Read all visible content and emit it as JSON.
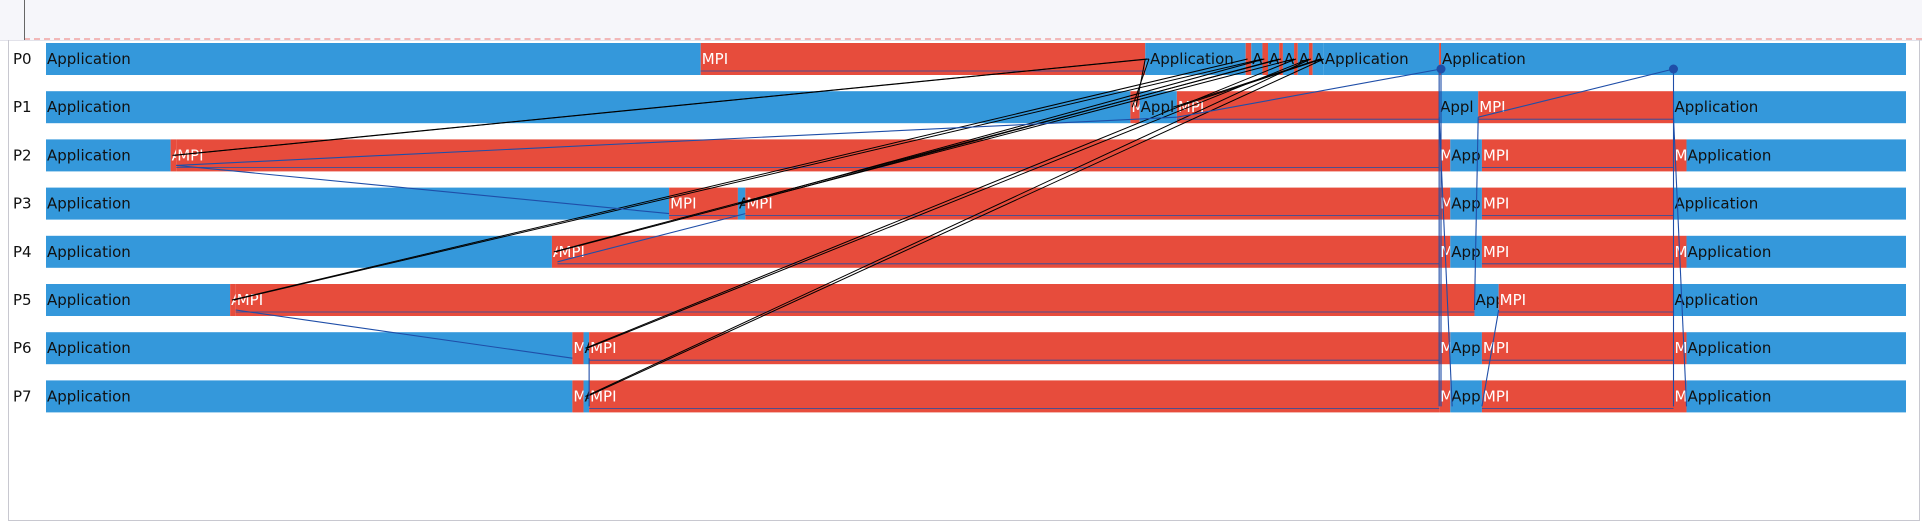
{
  "window": {
    "title": ""
  },
  "colors": {
    "application": "#3498db",
    "mpi": "#e74c3c",
    "message_line": "#000000",
    "collective_line": "#1f4ea8"
  },
  "labels": {
    "app": "Application",
    "mpi": "MPI"
  },
  "time_range": [
    0,
    1000
  ],
  "processes": [
    {
      "name": "P0",
      "states": [
        {
          "s": 0,
          "e": 352,
          "t": "app",
          "label": "Application"
        },
        {
          "s": 352,
          "e": 591,
          "t": "mpi",
          "label": "MPI"
        },
        {
          "s": 591,
          "e": 593,
          "t": "app",
          "label": ""
        },
        {
          "s": 593,
          "e": 645,
          "t": "app",
          "label": "Application"
        },
        {
          "s": 645,
          "e": 648,
          "t": "mpi",
          "label": ""
        },
        {
          "s": 648,
          "e": 654,
          "t": "app",
          "label": "A"
        },
        {
          "s": 654,
          "e": 657,
          "t": "mpi",
          "label": ""
        },
        {
          "s": 657,
          "e": 663,
          "t": "app",
          "label": "A"
        },
        {
          "s": 663,
          "e": 665,
          "t": "mpi",
          "label": ""
        },
        {
          "s": 665,
          "e": 671,
          "t": "app",
          "label": "A"
        },
        {
          "s": 671,
          "e": 673,
          "t": "mpi",
          "label": ""
        },
        {
          "s": 673,
          "e": 679,
          "t": "app",
          "label": "A"
        },
        {
          "s": 679,
          "e": 681,
          "t": "mpi",
          "label": ""
        },
        {
          "s": 681,
          "e": 687,
          "t": "app",
          "label": "A"
        },
        {
          "s": 687,
          "e": 749,
          "t": "app",
          "label": "Application"
        },
        {
          "s": 749,
          "e": 750,
          "t": "mpi",
          "label": ""
        },
        {
          "s": 750,
          "e": 1000,
          "t": "app",
          "label": "Application"
        }
      ]
    },
    {
      "name": "P1",
      "states": [
        {
          "s": 0,
          "e": 583,
          "t": "app",
          "label": "Application"
        },
        {
          "s": 583,
          "e": 588,
          "t": "mpi",
          "label": "M"
        },
        {
          "s": 588,
          "e": 608,
          "t": "app",
          "label": "Appl"
        },
        {
          "s": 608,
          "e": 749,
          "t": "mpi",
          "label": "MPI"
        },
        {
          "s": 749,
          "e": 770,
          "t": "app",
          "label": "Appl"
        },
        {
          "s": 770,
          "e": 875,
          "t": "mpi",
          "label": "MPI"
        },
        {
          "s": 875,
          "e": 1000,
          "t": "app",
          "label": "Application"
        }
      ]
    },
    {
      "name": "P2",
      "states": [
        {
          "s": 0,
          "e": 67,
          "t": "app",
          "label": "Application"
        },
        {
          "s": 67,
          "e": 70,
          "t": "mpi",
          "label": "A"
        },
        {
          "s": 70,
          "e": 749,
          "t": "mpi",
          "label": "MPI"
        },
        {
          "s": 749,
          "e": 755,
          "t": "mpi",
          "label": "M"
        },
        {
          "s": 755,
          "e": 772,
          "t": "app",
          "label": "App"
        },
        {
          "s": 772,
          "e": 875,
          "t": "mpi",
          "label": "MPI"
        },
        {
          "s": 875,
          "e": 882,
          "t": "mpi",
          "label": "M"
        },
        {
          "s": 882,
          "e": 1000,
          "t": "app",
          "label": "Application"
        }
      ]
    },
    {
      "name": "P3",
      "states": [
        {
          "s": 0,
          "e": 335,
          "t": "app",
          "label": "Application"
        },
        {
          "s": 335,
          "e": 372,
          "t": "mpi",
          "label": "MPI"
        },
        {
          "s": 372,
          "e": 376,
          "t": "app",
          "label": "A"
        },
        {
          "s": 376,
          "e": 749,
          "t": "mpi",
          "label": "MPI"
        },
        {
          "s": 749,
          "e": 755,
          "t": "mpi",
          "label": "M"
        },
        {
          "s": 755,
          "e": 772,
          "t": "app",
          "label": "App"
        },
        {
          "s": 772,
          "e": 875,
          "t": "mpi",
          "label": "MPI"
        },
        {
          "s": 875,
          "e": 1000,
          "t": "app",
          "label": "Application"
        }
      ]
    },
    {
      "name": "P4",
      "states": [
        {
          "s": 0,
          "e": 272,
          "t": "app",
          "label": "Application"
        },
        {
          "s": 272,
          "e": 275,
          "t": "mpi",
          "label": "A"
        },
        {
          "s": 275,
          "e": 749,
          "t": "mpi",
          "label": "MPI"
        },
        {
          "s": 749,
          "e": 755,
          "t": "mpi",
          "label": "M"
        },
        {
          "s": 755,
          "e": 772,
          "t": "app",
          "label": "App"
        },
        {
          "s": 772,
          "e": 875,
          "t": "mpi",
          "label": "MPI"
        },
        {
          "s": 875,
          "e": 882,
          "t": "mpi",
          "label": "M"
        },
        {
          "s": 882,
          "e": 1000,
          "t": "app",
          "label": "Application"
        }
      ]
    },
    {
      "name": "P5",
      "states": [
        {
          "s": 0,
          "e": 99,
          "t": "app",
          "label": "Application"
        },
        {
          "s": 99,
          "e": 102,
          "t": "mpi",
          "label": "A"
        },
        {
          "s": 102,
          "e": 768,
          "t": "mpi",
          "label": "MPI"
        },
        {
          "s": 768,
          "e": 781,
          "t": "app",
          "label": "App"
        },
        {
          "s": 781,
          "e": 875,
          "t": "mpi",
          "label": "MPI"
        },
        {
          "s": 875,
          "e": 1000,
          "t": "app",
          "label": "Application"
        }
      ]
    },
    {
      "name": "P6",
      "states": [
        {
          "s": 0,
          "e": 283,
          "t": "app",
          "label": "Application"
        },
        {
          "s": 283,
          "e": 289,
          "t": "mpi",
          "label": "M"
        },
        {
          "s": 289,
          "e": 292,
          "t": "app",
          "label": "A"
        },
        {
          "s": 292,
          "e": 749,
          "t": "mpi",
          "label": "MPI"
        },
        {
          "s": 749,
          "e": 755,
          "t": "mpi",
          "label": "M"
        },
        {
          "s": 755,
          "e": 772,
          "t": "app",
          "label": "App"
        },
        {
          "s": 772,
          "e": 875,
          "t": "mpi",
          "label": "MPI"
        },
        {
          "s": 875,
          "e": 882,
          "t": "mpi",
          "label": "M"
        },
        {
          "s": 882,
          "e": 1000,
          "t": "app",
          "label": "Application"
        }
      ]
    },
    {
      "name": "P7",
      "states": [
        {
          "s": 0,
          "e": 283,
          "t": "app",
          "label": "Application"
        },
        {
          "s": 283,
          "e": 289,
          "t": "mpi",
          "label": "M"
        },
        {
          "s": 289,
          "e": 292,
          "t": "app",
          "label": "A"
        },
        {
          "s": 292,
          "e": 749,
          "t": "mpi",
          "label": "MPI"
        },
        {
          "s": 749,
          "e": 755,
          "t": "mpi",
          "label": "M"
        },
        {
          "s": 755,
          "e": 772,
          "t": "app",
          "label": "App"
        },
        {
          "s": 772,
          "e": 875,
          "t": "mpi",
          "label": "MPI"
        },
        {
          "s": 875,
          "e": 882,
          "t": "mpi",
          "label": "M"
        },
        {
          "s": 882,
          "e": 1000,
          "t": "app",
          "label": "Application"
        }
      ]
    }
  ],
  "messages": [
    {
      "from": 0,
      "t1": 592,
      "to": 2,
      "t2": 68,
      "kind": "p2p"
    },
    {
      "from": 2,
      "t1": 69,
      "to": 0,
      "t2": 593,
      "kind": "p2p"
    },
    {
      "from": 0,
      "t1": 593,
      "to": 1,
      "t2": 584,
      "kind": "p2p"
    },
    {
      "from": 1,
      "t1": 586,
      "to": 0,
      "t2": 591,
      "kind": "p2p"
    },
    {
      "from": 0,
      "t1": 646,
      "to": 5,
      "t2": 100,
      "kind": "p2p"
    },
    {
      "from": 5,
      "t1": 101,
      "to": 0,
      "t2": 654,
      "kind": "p2p"
    },
    {
      "from": 0,
      "t1": 655,
      "to": 3,
      "t2": 372,
      "kind": "p2p"
    },
    {
      "from": 3,
      "t1": 374,
      "to": 0,
      "t2": 663,
      "kind": "p2p"
    },
    {
      "from": 0,
      "t1": 664,
      "to": 4,
      "t2": 273,
      "kind": "p2p"
    },
    {
      "from": 4,
      "t1": 274,
      "to": 0,
      "t2": 671,
      "kind": "p2p"
    },
    {
      "from": 0,
      "t1": 672,
      "to": 6,
      "t2": 290,
      "kind": "p2p"
    },
    {
      "from": 6,
      "t1": 291,
      "to": 0,
      "t2": 679,
      "kind": "p2p"
    },
    {
      "from": 0,
      "t1": 680,
      "to": 7,
      "t2": 290,
      "kind": "p2p"
    },
    {
      "from": 7,
      "t1": 291,
      "to": 0,
      "t2": 687,
      "kind": "p2p"
    },
    {
      "from": 0,
      "t1": 686,
      "to": 1,
      "t2": 608,
      "kind": "p2p"
    },
    {
      "from": 1,
      "t1": 606,
      "to": 0,
      "t2": 685,
      "kind": "p2p"
    },
    {
      "from": 2,
      "t1": 70,
      "to": 3,
      "t2": 335,
      "kind": "coll"
    },
    {
      "from": 5,
      "t1": 102,
      "to": 6,
      "t2": 283,
      "kind": "coll"
    },
    {
      "from": 3,
      "t1": 376,
      "to": 4,
      "t2": 275,
      "kind": "coll"
    },
    {
      "from": 1,
      "t1": 608,
      "to": 2,
      "t2": 70,
      "kind": "coll"
    },
    {
      "from": 6,
      "t1": 292,
      "to": 7,
      "t2": 292,
      "kind": "coll"
    },
    {
      "from": 1,
      "t1": 770,
      "to": 0,
      "t2": 875,
      "kind": "coll"
    },
    {
      "from": 0,
      "t1": 750,
      "to": 7,
      "t2": 750,
      "kind": "coll"
    },
    {
      "from": 0,
      "t1": 749,
      "to": 7,
      "t2": 749,
      "kind": "coll"
    },
    {
      "from": 1,
      "t1": 749,
      "to": 7,
      "t2": 756,
      "kind": "coll"
    },
    {
      "from": 0,
      "t1": 875,
      "to": 7,
      "t2": 875,
      "kind": "coll"
    },
    {
      "from": 1,
      "t1": 875,
      "to": 7,
      "t2": 882,
      "kind": "coll"
    },
    {
      "from": 1,
      "t1": 770,
      "to": 5,
      "t2": 768,
      "kind": "coll"
    },
    {
      "from": 5,
      "t1": 781,
      "to": 7,
      "t2": 772,
      "kind": "coll"
    },
    {
      "from": 1,
      "t1": 608,
      "to": 0,
      "t2": 750,
      "kind": "coll"
    }
  ],
  "markers": [
    {
      "row": 0,
      "t": 750
    },
    {
      "row": 0,
      "t": 875
    }
  ]
}
